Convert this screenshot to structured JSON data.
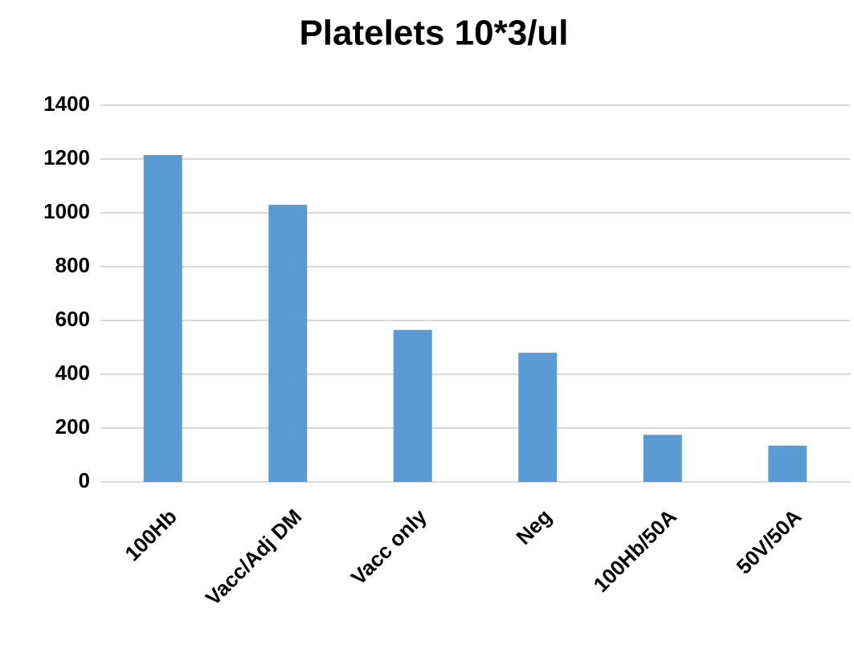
{
  "chart_data": {
    "type": "bar",
    "title": "Platelets 10*3/ul",
    "categories": [
      "100Hb",
      "Vacc/Adj DM",
      "Vacc only",
      "Neg",
      "100Hb/50A",
      "50V/50A"
    ],
    "values": [
      1215,
      1030,
      565,
      480,
      175,
      135
    ],
    "color": "#5b9bd5",
    "ylim": [
      0,
      1400
    ],
    "yticks": [
      0,
      200,
      400,
      600,
      800,
      1000,
      1200,
      1400
    ],
    "grid": true
  }
}
